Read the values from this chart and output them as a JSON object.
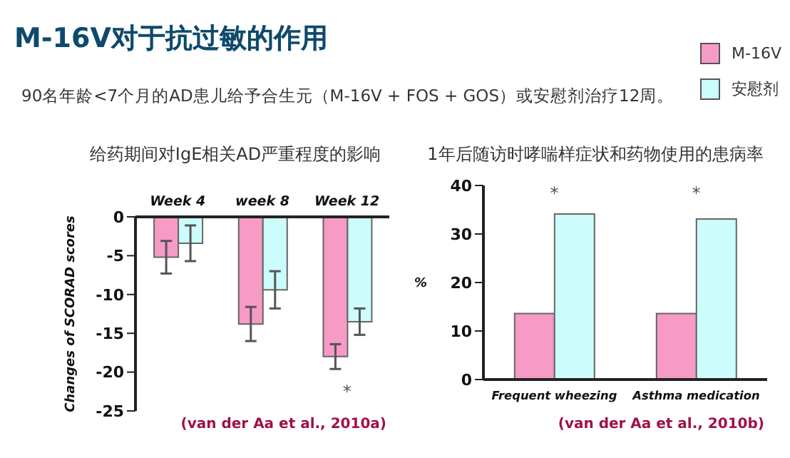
{
  "chart_data": [
    {
      "type": "bar",
      "title": "给药期间对IgE相关AD严重程度的影响",
      "ylabel": "Changes of SCORAD scores",
      "categories": [
        "Week 4",
        "week 8",
        "Week 12"
      ],
      "series": [
        {
          "name": "M-16V",
          "color": "#f79ac6",
          "values": [
            -5.2,
            -13.8,
            -18.0
          ],
          "errors": [
            2.1,
            2.2,
            1.6
          ]
        },
        {
          "name": "安慰剂",
          "color": "#ccfcfc",
          "values": [
            -3.4,
            -9.4,
            -13.5
          ],
          "errors": [
            2.3,
            2.4,
            1.7
          ]
        }
      ],
      "ylim": [
        -25,
        0
      ],
      "yticks": [
        0,
        -5,
        -10,
        -15,
        -20,
        -25
      ],
      "legend": "top right",
      "annotations": [
        "M-16V对于抗过敏的作用",
        "90名年龄<7个月的AD患儿给予合生元（M-16V + FOS + GOS）或安慰剂治疗12周。",
        "*",
        "(van der Aa et al., 2010a)"
      ]
    },
    {
      "type": "bar",
      "title": "1年后随访时哮喘样症状和药物使用的患病率",
      "ylabel": "%",
      "categories": [
        "Frequent wheezing",
        "Asthma medication"
      ],
      "series": [
        {
          "color": "#f79ac6",
          "values": [
            13.6,
            13.6
          ]
        },
        {
          "color": "#ccfcfc",
          "values": [
            34.1,
            33.1
          ]
        }
      ],
      "ylim": [
        0,
        40
      ],
      "yticks": [
        0,
        10,
        20,
        30,
        40
      ],
      "annotations": [
        "*",
        "*",
        "(van der Aa et al., 2010b)"
      ]
    }
  ]
}
